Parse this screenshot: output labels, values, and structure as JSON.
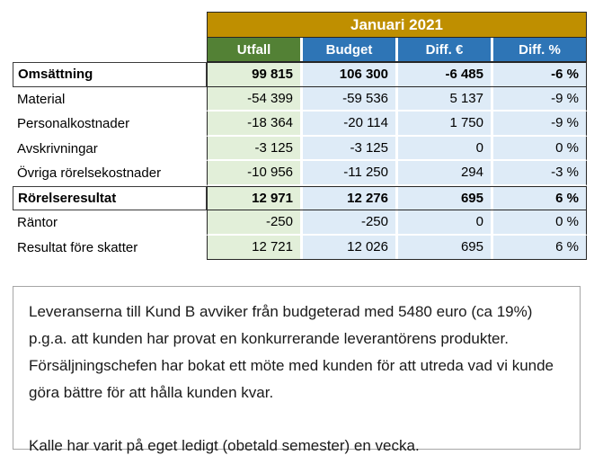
{
  "table": {
    "period_title": "Januari 2021",
    "columns": {
      "utfall": "Utfall",
      "budget": "Budget",
      "diff_eur": "Diff. €",
      "diff_pct": "Diff. %"
    },
    "rows": [
      {
        "label": "Omsättning",
        "utfall": "99 815",
        "budget": "106 300",
        "diff_eur": "-6 485",
        "diff_pct": "-6 %"
      },
      {
        "label": "Material",
        "utfall": "-54 399",
        "budget": "-59 536",
        "diff_eur": "5 137",
        "diff_pct": "-9 %"
      },
      {
        "label": "Personalkostnader",
        "utfall": "-18 364",
        "budget": "-20 114",
        "diff_eur": "1 750",
        "diff_pct": "-9 %"
      },
      {
        "label": "Avskrivningar",
        "utfall": "-3 125",
        "budget": "-3 125",
        "diff_eur": "0",
        "diff_pct": "0 %"
      },
      {
        "label": "Övriga rörelsekostnader",
        "utfall": "-10 956",
        "budget": "-11 250",
        "diff_eur": "294",
        "diff_pct": "-3 %"
      },
      {
        "label": "Rörelseresultat",
        "utfall": "12 971",
        "budget": "12 276",
        "diff_eur": "695",
        "diff_pct": "6 %"
      },
      {
        "label": "Räntor",
        "utfall": "-250",
        "budget": "-250",
        "diff_eur": "0",
        "diff_pct": "0 %"
      },
      {
        "label": "Resultat före skatter",
        "utfall": "12 721",
        "budget": "12 026",
        "diff_eur": "695",
        "diff_pct": "6 %"
      }
    ]
  },
  "notes": {
    "paragraph_1": "Leveranserna till Kund B avviker från budgeterad med 5480 euro (ca 19%) p.g.a. att kunden har provat en konkurrerande leverantörens produkter. Försäljningschefen har bokat ett möte med kunden för att utreda vad vi kunde göra bättre för att hålla kunden kvar.",
    "paragraph_2": "Kalle har varit på eget ledigt (obetald semester) en vecka."
  },
  "colors": {
    "banner_gold": "#bf8f00",
    "header_green": "#538135",
    "header_blue": "#2e75b6",
    "cell_light_green": "#e2efd9",
    "cell_light_blue": "#deebf7",
    "table_border": "#262626",
    "note_border": "#a6a6a6"
  }
}
